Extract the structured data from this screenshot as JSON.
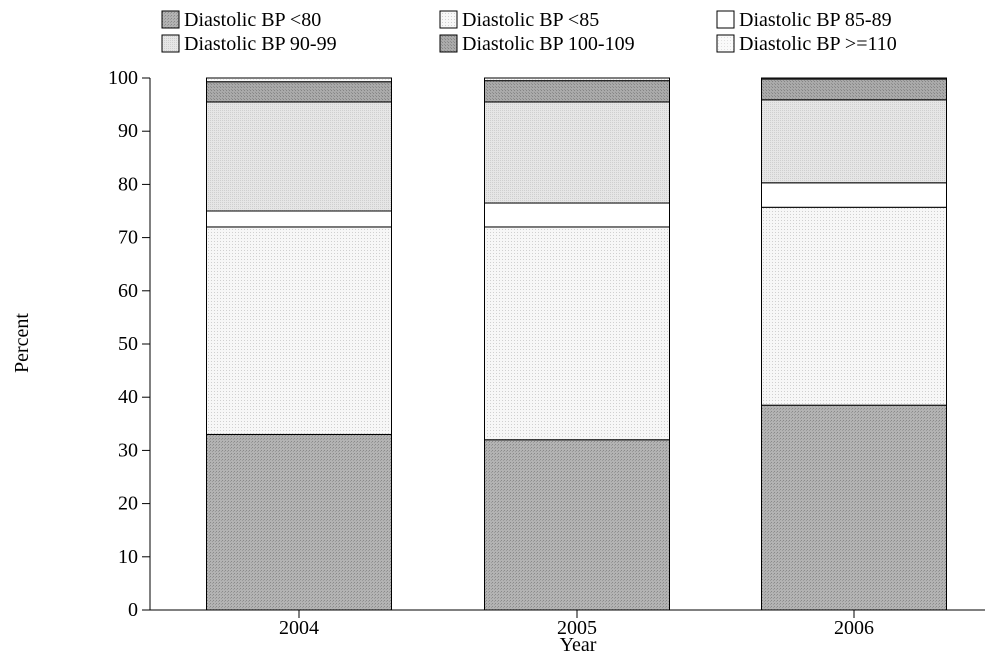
{
  "chart_data": {
    "type": "bar",
    "stacked": true,
    "categories": [
      "2004",
      "2005",
      "2006"
    ],
    "xlabel": "Year",
    "ylabel": "Percent",
    "ylim": [
      0,
      100
    ],
    "yticks": [
      0,
      10,
      20,
      30,
      40,
      50,
      60,
      70,
      80,
      90,
      100
    ],
    "grid": false,
    "legend_position": "top",
    "series": [
      {
        "name": "Diastolic BP <80",
        "values": [
          33.0,
          32.0,
          38.5
        ],
        "color": "#a7a7a7"
      },
      {
        "name": "Diastolic BP <85",
        "values": [
          39.0,
          40.0,
          37.2
        ],
        "color": "#f1f1f1"
      },
      {
        "name": "Diastolic BP 85-89",
        "values": [
          3.0,
          4.5,
          4.6
        ],
        "color": "#ffffff"
      },
      {
        "name": "Diastolic BP 90-99",
        "values": [
          20.5,
          19.0,
          15.6
        ],
        "color": "#dcdcdc"
      },
      {
        "name": "Diastolic BP 100-109",
        "values": [
          3.8,
          4.0,
          3.9
        ],
        "color": "#9f9f9f"
      },
      {
        "name": "Diastolic BP >=110",
        "values": [
          0.7,
          0.5,
          0.2
        ],
        "color": "#f6f6f6"
      }
    ]
  }
}
